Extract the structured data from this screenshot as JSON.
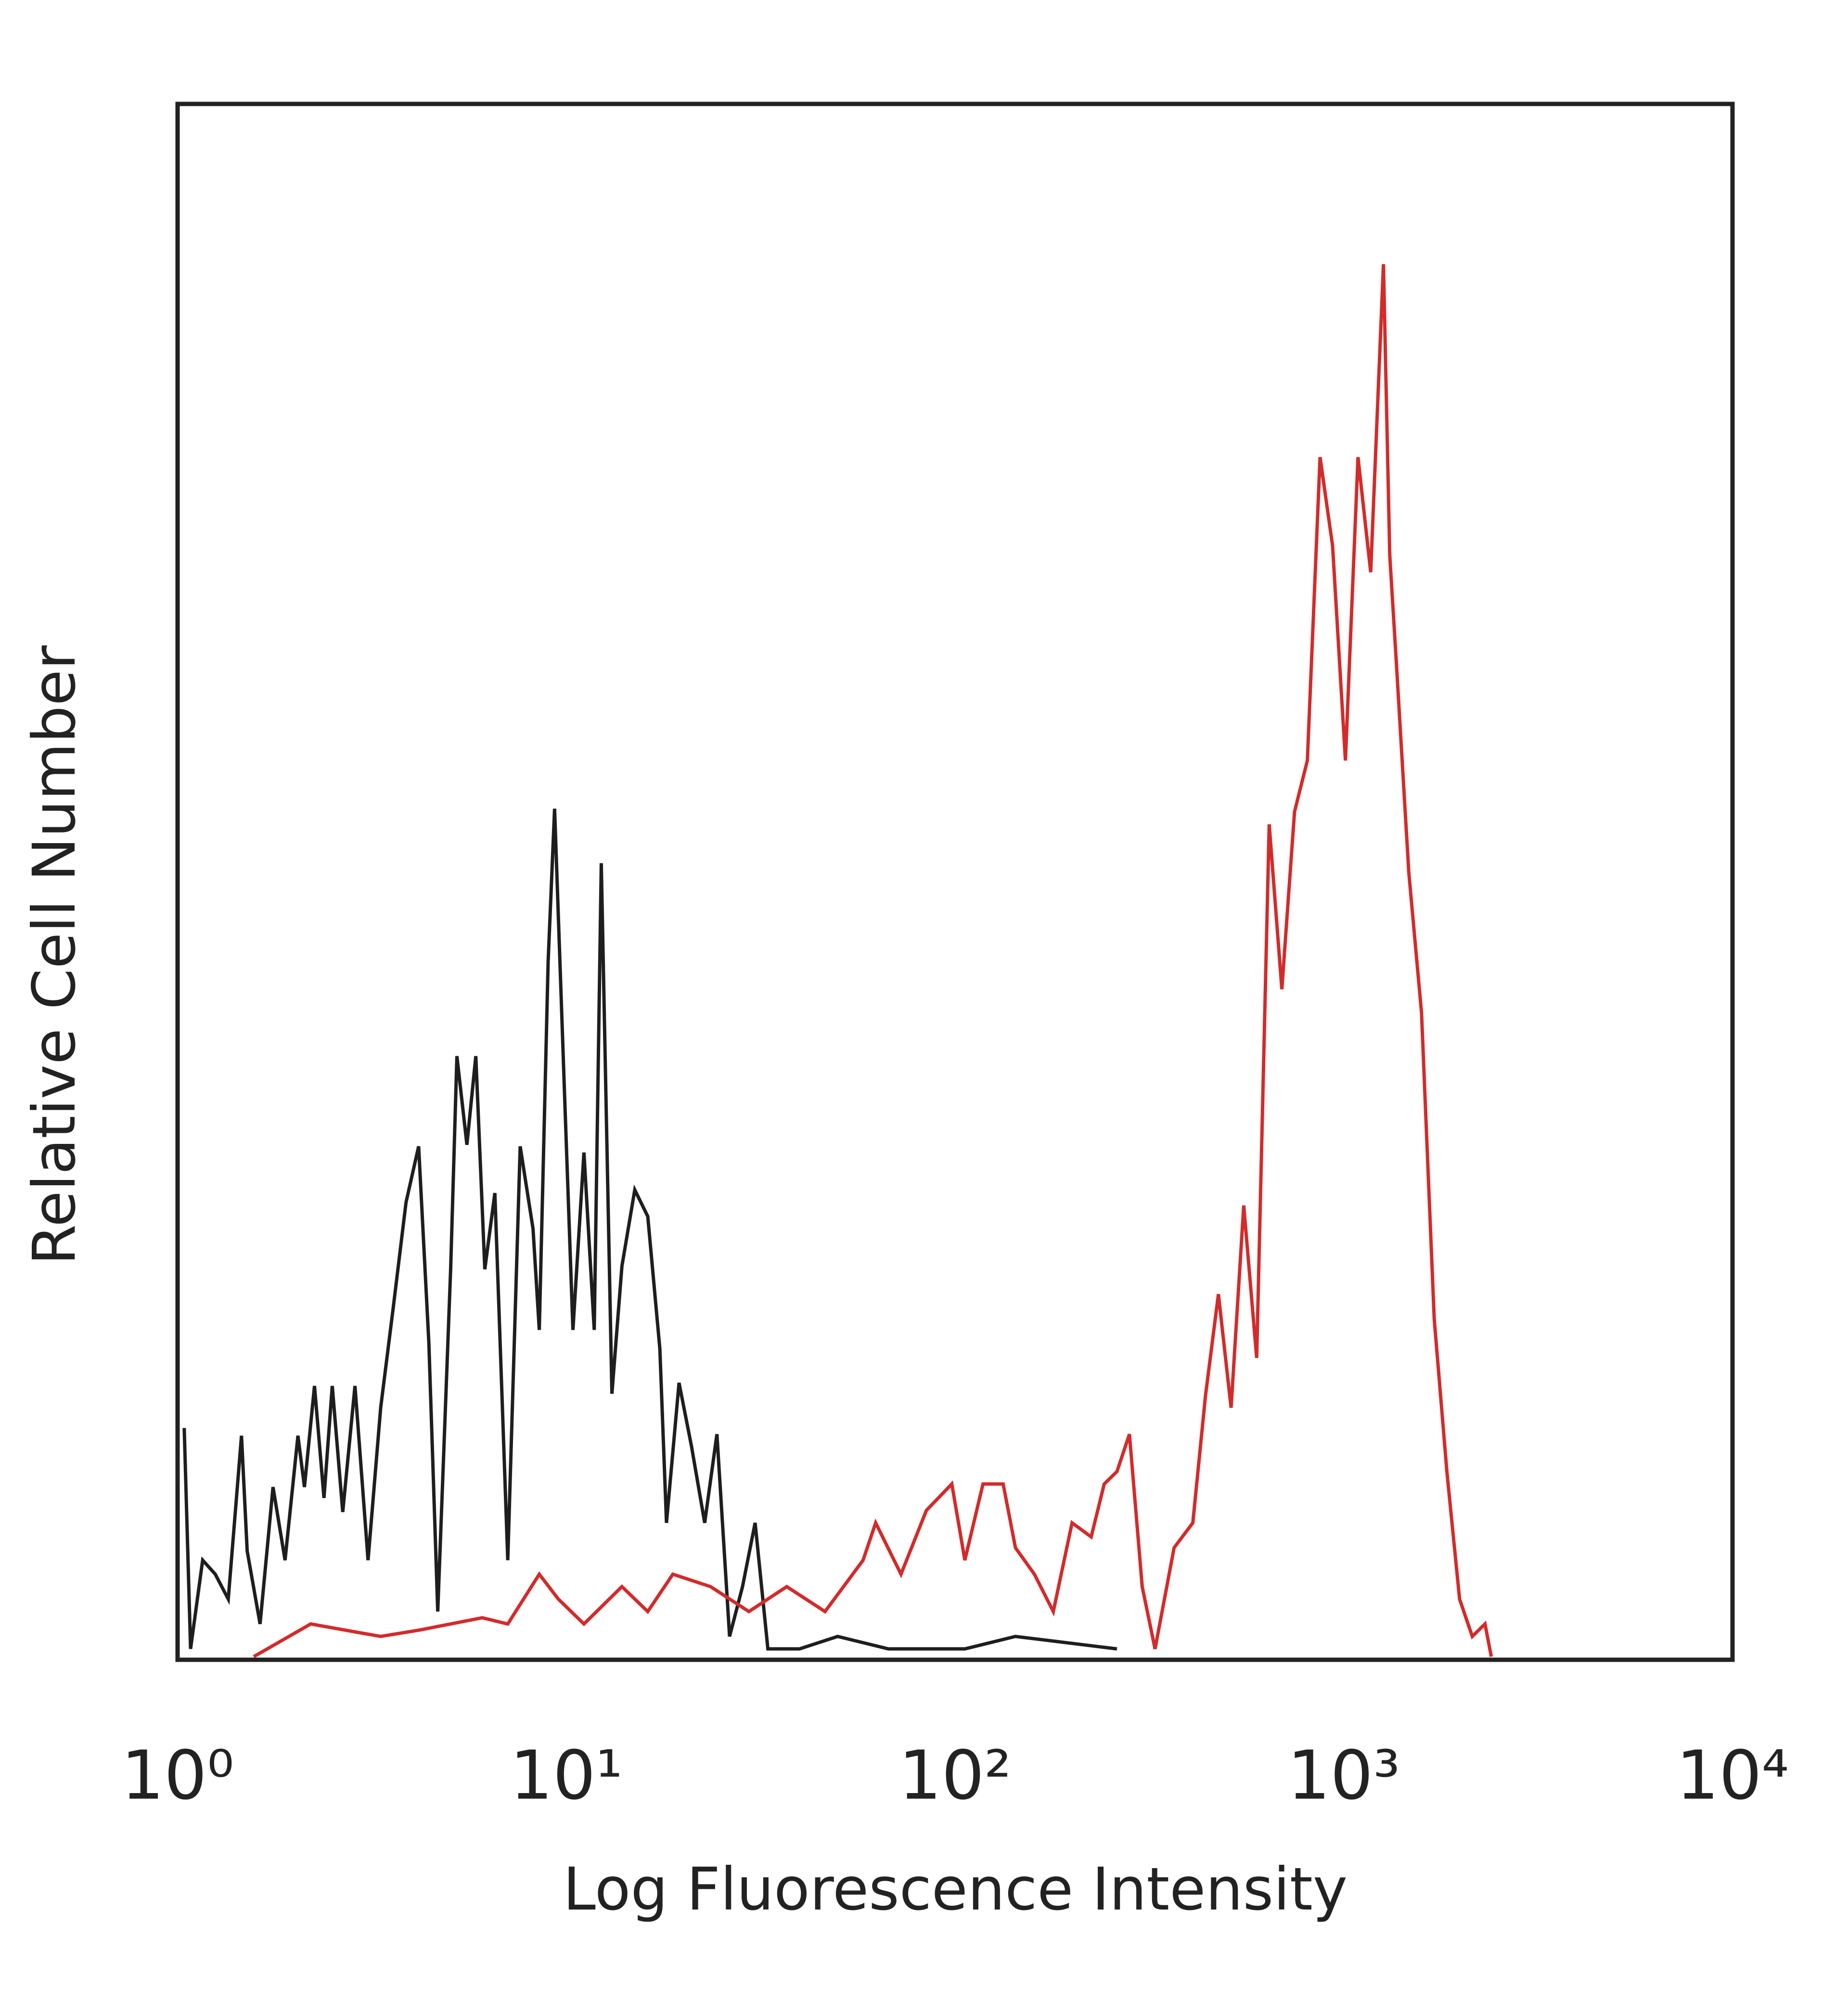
{
  "chart_data": {
    "type": "line",
    "x_label": "Log Fluorescence Intensity",
    "y_label": "Relative Cell Number",
    "xscale": "log",
    "xlim": [
      1,
      10000
    ],
    "xticks": [
      {
        "value": 1,
        "label": "10⁰"
      },
      {
        "value": 10,
        "label": "10¹"
      },
      {
        "value": 100,
        "label": "10²"
      },
      {
        "value": 1000,
        "label": "10³"
      },
      {
        "value": 10000,
        "label": "10⁴"
      }
    ],
    "ylim": [
      0,
      100
    ],
    "grid": false,
    "series": [
      {
        "color": "#1e1e1e",
        "x": [
          1.04,
          1.08,
          1.16,
          1.25,
          1.35,
          1.46,
          1.51,
          1.63,
          1.76,
          1.89,
          2.04,
          2.12,
          2.25,
          2.38,
          2.5,
          2.66,
          2.86,
          3.09,
          3.33,
          3.59,
          3.87,
          4.17,
          4.43,
          4.67,
          5.04,
          5.23,
          5.55,
          5.85,
          6.17,
          6.55,
          7.07,
          7.61,
          8.21,
          8.52,
          8.98,
          9.33,
          9.91,
          10.4,
          11.1,
          11.8,
          12.3,
          13.1,
          13.9,
          15.0,
          16.2,
          17.4,
          18.1,
          19.5,
          21.0,
          22.7,
          24.4,
          26.3,
          28.4,
          30.6,
          33.0,
          39.8,
          49.9,
          67.4,
          106,
          143,
          261
        ],
        "values": [
          14.9,
          0.7,
          6.4,
          5.5,
          3.9,
          14.4,
          7.0,
          2.3,
          11.1,
          6.4,
          14.4,
          11.1,
          17.6,
          10.4,
          17.6,
          9.5,
          17.6,
          6.4,
          16.2,
          22.7,
          29.4,
          33.0,
          20.4,
          3.1,
          25.1,
          38.8,
          33.1,
          38.8,
          25.1,
          30.0,
          6.4,
          33.0,
          27.7,
          21.2,
          44.9,
          54.7,
          35.9,
          21.2,
          32.6,
          21.2,
          51.2,
          17.1,
          25.3,
          30.2,
          28.5,
          20.0,
          8.8,
          17.8,
          13.7,
          8.8,
          14.5,
          1.5,
          4.7,
          8.8,
          0.7,
          0.7,
          1.5,
          0.7,
          0.7,
          1.5,
          0.7
        ]
      },
      {
        "color": "#d42a2a",
        "x": [
          1.57,
          2.2,
          3.33,
          4.17,
          6.08,
          7.07,
          8.52,
          9.54,
          11.1,
          13.9,
          16.2,
          18.8,
          23.5,
          29.5,
          36.9,
          46.3,
          58.0,
          62.5,
          72.6,
          84.4,
          98.1,
          106,
          118,
          133,
          143,
          160,
          179,
          200,
          224,
          242,
          261,
          281,
          303,
          327,
          366,
          409,
          441,
          476,
          513,
          553,
          597,
          643,
          693,
          747,
          806,
          869,
          936,
          1010,
          1088,
          1173,
          1265,
          1313,
          1363,
          1470,
          1585,
          1709,
          1842,
          1986,
          2141,
          2308,
          2396
        ],
        "values": [
          0.2,
          2.3,
          1.5,
          1.9,
          2.7,
          2.3,
          5.5,
          3.9,
          2.3,
          4.7,
          3.1,
          5.5,
          4.7,
          3.1,
          4.7,
          3.1,
          6.4,
          8.8,
          5.5,
          9.6,
          11.3,
          6.4,
          11.3,
          11.3,
          7.2,
          5.5,
          3.1,
          8.8,
          7.9,
          11.3,
          12.1,
          14.5,
          4.7,
          0.7,
          7.2,
          8.8,
          17.0,
          23.5,
          16.2,
          29.2,
          19.4,
          53.7,
          43.1,
          54.5,
          57.8,
          77.3,
          71.6,
          57.8,
          77.3,
          69.9,
          89.7,
          71.0,
          64.4,
          50.6,
          41.6,
          21.9,
          12.1,
          3.9,
          1.5,
          2.3,
          0.2
        ]
      }
    ]
  }
}
